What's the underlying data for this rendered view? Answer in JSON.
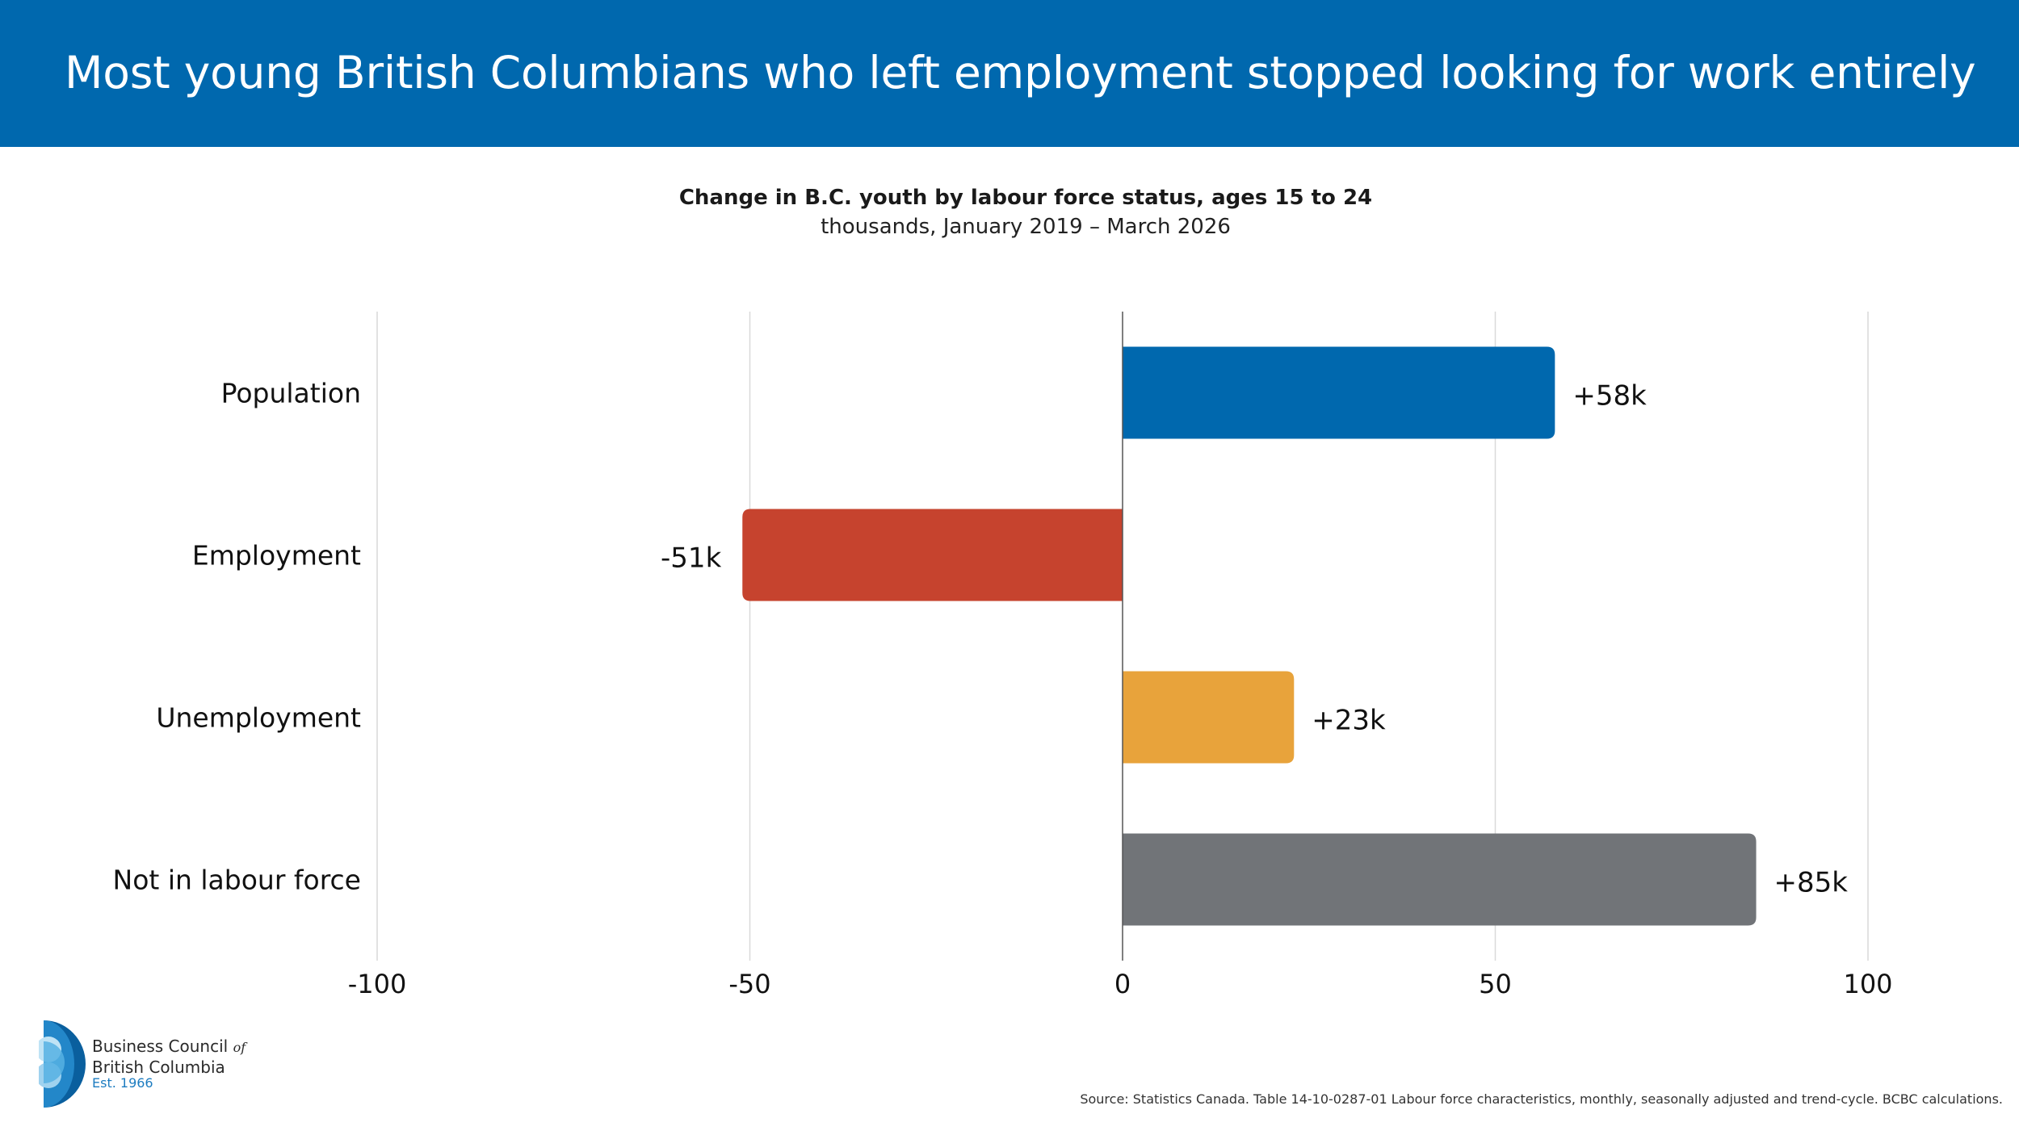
{
  "headline": "Most young British Columbians who left employment stopped looking for work entirely",
  "chart_data": {
    "type": "bar",
    "orientation": "horizontal",
    "title": "Change in B.C. youth by labour force status, ages 15 to 24",
    "subtitle": "thousands, January 2019 – March 2026",
    "categories": [
      "Population",
      "Employment",
      "Unemployment",
      "Not in labour force"
    ],
    "values": [
      58,
      -51,
      23,
      85
    ],
    "data_labels": [
      "+58k",
      "-51k",
      "+23k",
      "+85k"
    ],
    "colors": [
      "#0068ae",
      "#c6432e",
      "#e8a33b",
      "#717478"
    ],
    "xlim": [
      -100,
      100
    ],
    "xticks": [
      -100,
      -50,
      0,
      50,
      100
    ],
    "xtick_labels": [
      "-100",
      "-50",
      "0",
      "50",
      "100"
    ],
    "grid": true,
    "legend": "none"
  },
  "logo": {
    "name_line1": "Business Council",
    "name_of": "of",
    "name_line2": "British Columbia",
    "est": "Est. 1966"
  },
  "source": "Source: Statistics Canada. Table 14-10-0287-01 Labour force characteristics, monthly, seasonally adjusted and trend-cycle. BCBC calculations."
}
